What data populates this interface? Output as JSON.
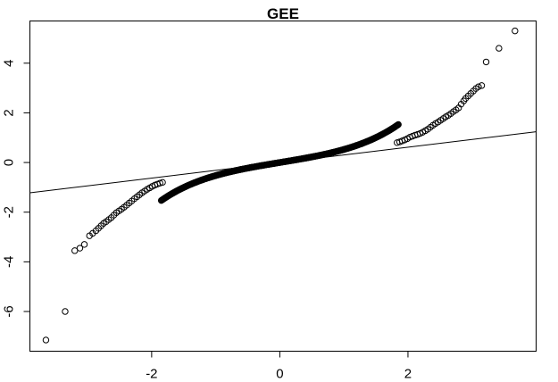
{
  "chart_data": {
    "type": "scatter",
    "title": "GEE",
    "xlabel": "",
    "ylabel": "",
    "xlim": [
      -3.9,
      4.0
    ],
    "ylim": [
      -7.6,
      5.7
    ],
    "x_ticks": [
      -2,
      0,
      2
    ],
    "x_tick_labels": [
      "-2",
      "0",
      "2"
    ],
    "y_ticks": [
      -6,
      -4,
      -2,
      0,
      2,
      4
    ],
    "y_tick_labels": [
      "-6",
      "-4",
      "-2",
      "0",
      "2",
      "4"
    ],
    "grid": false,
    "legend": "none",
    "marker": "open-circle",
    "points": [
      [
        -3.65,
        -7.15
      ],
      [
        -3.35,
        -6.0
      ],
      [
        -3.2,
        -3.55
      ],
      [
        -3.12,
        -3.45
      ],
      [
        -3.05,
        -3.3
      ],
      [
        -2.97,
        -2.95
      ],
      [
        -2.92,
        -2.85
      ],
      [
        -2.87,
        -2.75
      ],
      [
        -2.83,
        -2.65
      ],
      [
        -2.79,
        -2.55
      ],
      [
        -2.75,
        -2.45
      ],
      [
        -2.71,
        -2.38
      ],
      [
        -2.67,
        -2.3
      ],
      [
        -2.63,
        -2.22
      ],
      [
        -2.59,
        -2.12
      ],
      [
        -2.55,
        -2.02
      ],
      [
        -2.51,
        -1.95
      ],
      [
        -2.47,
        -1.88
      ],
      [
        -2.43,
        -1.8
      ],
      [
        -2.39,
        -1.72
      ],
      [
        -2.35,
        -1.63
      ],
      [
        -2.31,
        -1.55
      ],
      [
        -2.27,
        -1.46
      ],
      [
        -2.23,
        -1.38
      ],
      [
        -2.19,
        -1.3
      ],
      [
        -2.15,
        -1.22
      ],
      [
        -2.11,
        -1.15
      ],
      [
        -2.07,
        -1.08
      ],
      [
        -2.03,
        -1.02
      ],
      [
        -1.99,
        -0.96
      ],
      [
        -1.95,
        -0.91
      ],
      [
        -1.91,
        -0.87
      ],
      [
        -1.87,
        -0.83
      ],
      [
        -1.83,
        -0.8
      ],
      [
        1.83,
        0.8
      ],
      [
        1.87,
        0.83
      ],
      [
        1.91,
        0.87
      ],
      [
        1.95,
        0.91
      ],
      [
        1.99,
        0.96
      ],
      [
        2.03,
        1.02
      ],
      [
        2.07,
        1.06
      ],
      [
        2.11,
        1.1
      ],
      [
        2.15,
        1.13
      ],
      [
        2.19,
        1.17
      ],
      [
        2.23,
        1.22
      ],
      [
        2.27,
        1.28
      ],
      [
        2.31,
        1.34
      ],
      [
        2.35,
        1.42
      ],
      [
        2.39,
        1.5
      ],
      [
        2.43,
        1.57
      ],
      [
        2.47,
        1.63
      ],
      [
        2.51,
        1.7
      ],
      [
        2.55,
        1.77
      ],
      [
        2.59,
        1.84
      ],
      [
        2.63,
        1.9
      ],
      [
        2.67,
        1.97
      ],
      [
        2.71,
        2.05
      ],
      [
        2.75,
        2.12
      ],
      [
        2.79,
        2.2
      ],
      [
        2.83,
        2.35
      ],
      [
        2.87,
        2.48
      ],
      [
        2.9,
        2.58
      ],
      [
        2.94,
        2.68
      ],
      [
        2.98,
        2.78
      ],
      [
        3.02,
        2.88
      ],
      [
        3.06,
        2.98
      ],
      [
        3.1,
        3.05
      ],
      [
        3.15,
        3.1
      ],
      [
        3.22,
        4.05
      ],
      [
        3.42,
        4.6
      ],
      [
        3.67,
        5.3
      ]
    ],
    "dense_band": {
      "x_range": [
        -1.85,
        1.85
      ],
      "shape": "y = 0.37*sinh(1.15*x)",
      "count": 400
    },
    "reference_line": {
      "x": [
        -3.9,
        4.0
      ],
      "y": [
        -1.22,
        1.24
      ]
    }
  }
}
